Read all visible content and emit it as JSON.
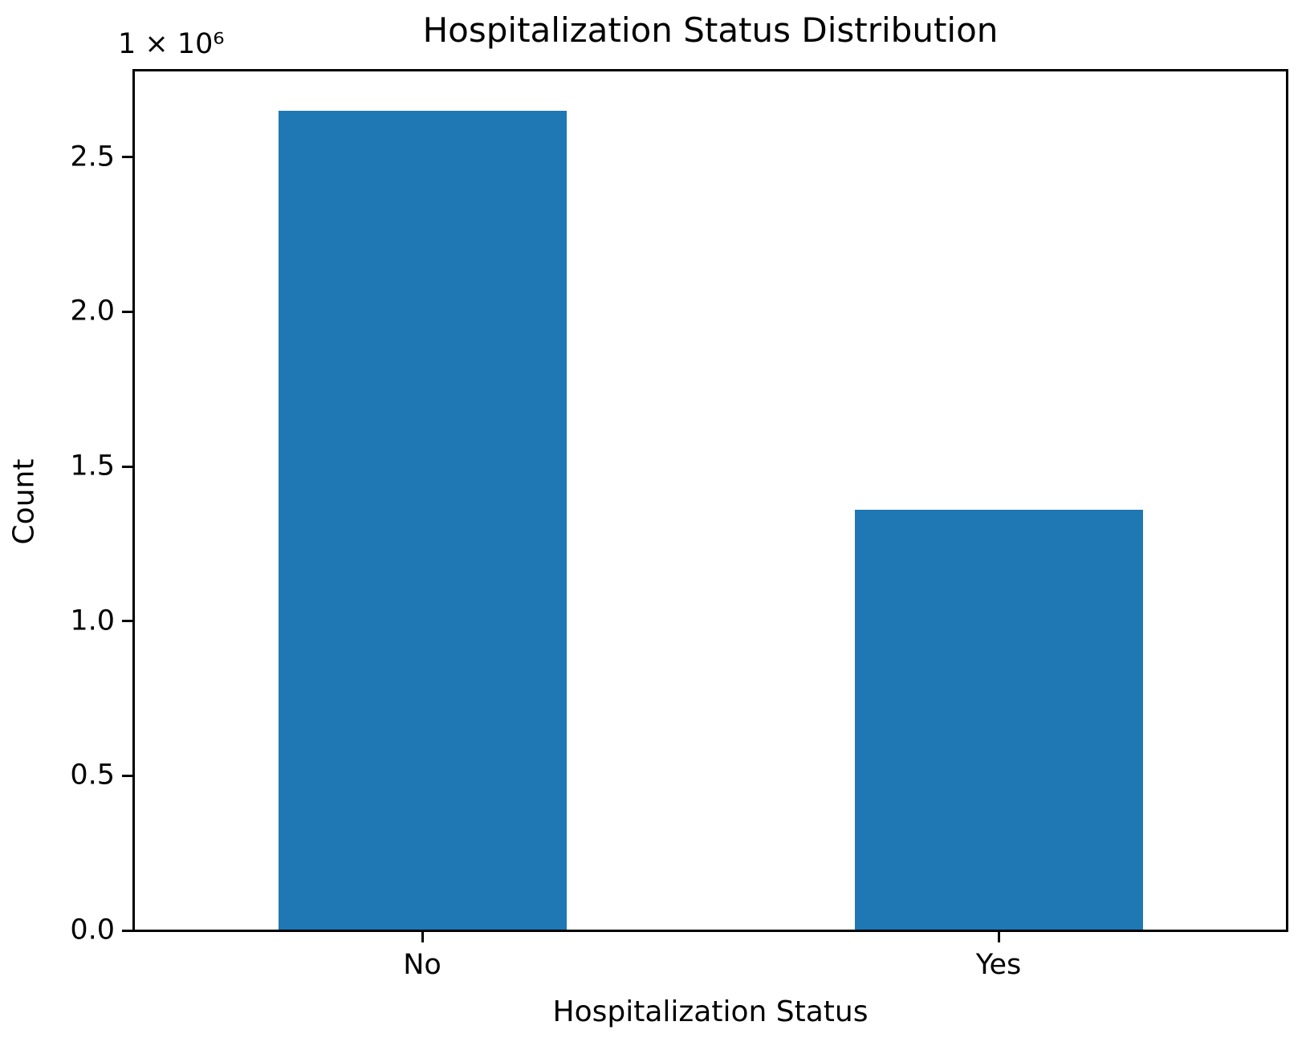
{
  "chart_data": {
    "type": "bar",
    "title": "Hospitalization Status Distribution",
    "xlabel": "Hospitalization Status",
    "ylabel": "Count",
    "offset_text": "1 × 10⁶",
    "categories": [
      "No",
      "Yes"
    ],
    "values": [
      2650000,
      1360000
    ],
    "ylim": [
      0,
      2780000
    ],
    "ytick_values": [
      0,
      500000,
      1000000,
      1500000,
      2000000,
      2500000
    ],
    "ytick_labels": [
      "0.0",
      "0.5",
      "1.0",
      "1.5",
      "2.0",
      "2.5"
    ],
    "bar_color": "#1f77b4",
    "bar_width_fraction": 0.5,
    "grid": false,
    "legend": null
  }
}
